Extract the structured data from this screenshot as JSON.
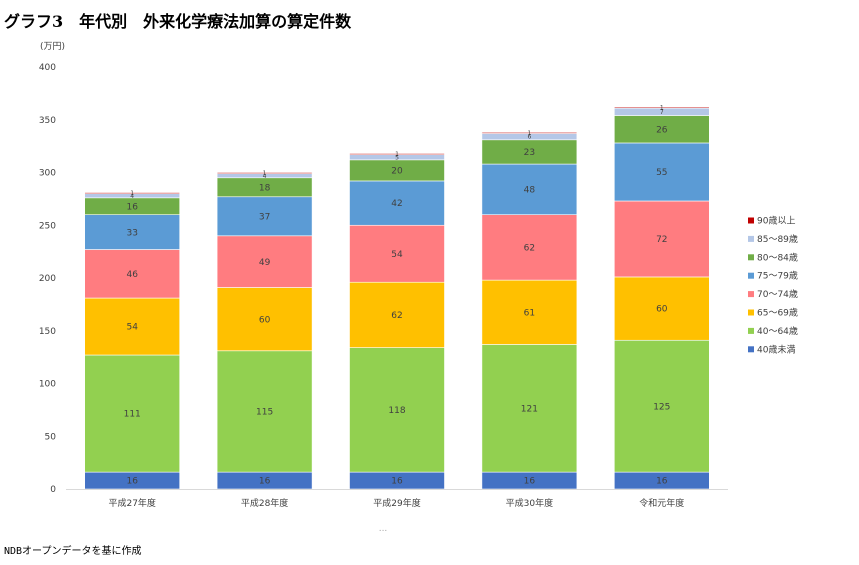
{
  "title": "グラフ3　年代別　外来化学療法加算の算定件数",
  "source_note": "NDBオープンデータを基に作成",
  "chart_data": {
    "type": "bar",
    "stacked": true,
    "unit_label": "(万円)",
    "ylim": [
      0,
      400
    ],
    "yticks": [
      0,
      50,
      100,
      150,
      200,
      250,
      300,
      350,
      400
    ],
    "grid": false,
    "legend_position": "right",
    "categories": [
      "平成27年度",
      "平成28年度",
      "平成29年度",
      "平成30年度",
      "令和元年度"
    ],
    "series": [
      {
        "name": "40歳未満",
        "color": "#4472c4",
        "values": [
          16,
          16,
          16,
          16,
          16
        ],
        "labels": [
          "16",
          "16",
          "16",
          "16",
          "16"
        ]
      },
      {
        "name": "40～64歳",
        "color": "#92d050",
        "values": [
          111,
          115,
          118,
          121,
          125
        ],
        "labels": [
          "111",
          "115",
          "118",
          "121",
          "125"
        ]
      },
      {
        "name": "65～69歳",
        "color": "#ffc000",
        "values": [
          54,
          60,
          62,
          61,
          60
        ],
        "labels": [
          "54",
          "60",
          "62",
          "61",
          "60"
        ]
      },
      {
        "name": "70～74歳",
        "color": "#ff7c80",
        "values": [
          46,
          49,
          54,
          62,
          72
        ],
        "labels": [
          "46",
          "49",
          "54",
          "62",
          "72"
        ]
      },
      {
        "name": "75～79歳",
        "color": "#5b9bd5",
        "values": [
          33,
          37,
          42,
          48,
          55
        ],
        "labels": [
          "33",
          "37",
          "42",
          "48",
          "55"
        ]
      },
      {
        "name": "80～84歳",
        "color": "#70ad47",
        "values": [
          16,
          18,
          20,
          23,
          26
        ],
        "labels": [
          "16",
          "18",
          "20",
          "23",
          "26"
        ]
      },
      {
        "name": "85～89歳",
        "color": "#b4c7e7",
        "values": [
          4,
          4,
          5,
          6,
          7
        ],
        "labels": [
          "4",
          "4",
          "5",
          "6",
          "7"
        ]
      },
      {
        "name": "90歳以上",
        "color": "#c00000",
        "values": [
          1,
          1,
          1,
          1,
          1
        ],
        "labels": [
          "1",
          "1",
          "1",
          "1",
          "1"
        ]
      }
    ],
    "footer_mark": "..."
  }
}
